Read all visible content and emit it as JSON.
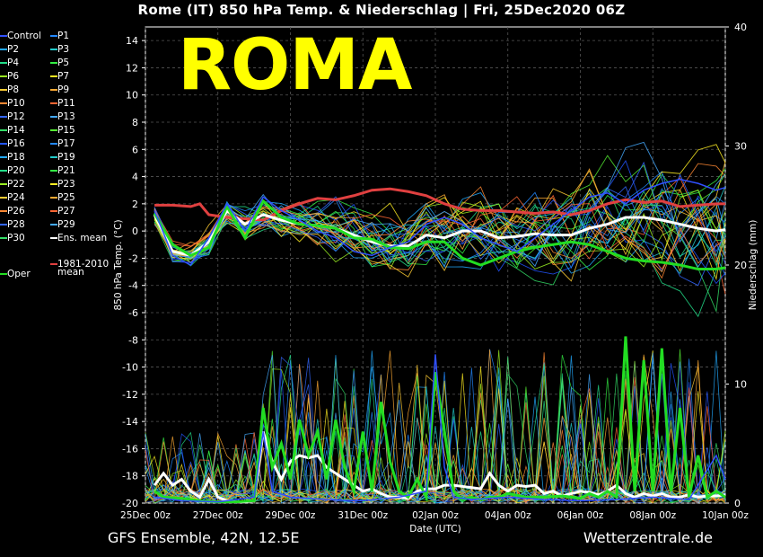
{
  "title": "Rome  (IT)  850 hPa Temp. & Niederschlag | Fri, 25Dec2020 06Z",
  "watermark": "ROMA",
  "footer": {
    "left": "GFS Ensemble, 42N, 12.5E",
    "right": "Wetterzentrale.de"
  },
  "legend": {
    "col1": [
      "Control",
      "P2",
      "P4",
      "P6",
      "P8",
      "P10",
      "P12",
      "P14",
      "P16",
      "P18",
      "P20",
      "P22",
      "P24",
      "P26",
      "P28",
      "P30"
    ],
    "col2": [
      "P1",
      "P3",
      "P5",
      "P7",
      "P9",
      "P11",
      "P13",
      "P15",
      "P17",
      "P19",
      "P21",
      "P23",
      "P25",
      "P27",
      "P29",
      "Ens. mean"
    ],
    "clim_label_1": "1981-2010",
    "clim_label_2": "mean",
    "oper_label": "Oper"
  },
  "colors": {
    "background": "#000000",
    "control": "#3050ff",
    "ens_mean": "#ffffff",
    "clim_mean": "#e04040",
    "oper": "#22dd22",
    "watermark": "#ffff00",
    "member_palette": [
      "#2255ff",
      "#2288ff",
      "#22aaff",
      "#22cccc",
      "#22dd88",
      "#33ee44",
      "#99ee22",
      "#ffee22",
      "#ffcc33",
      "#ffaa33",
      "#ff8833",
      "#ff6633",
      "#3366ff",
      "#44aaff",
      "#33dd66",
      "#55ee33"
    ]
  },
  "chart_data": {
    "type": "line",
    "xlabel": "Date (UTC)",
    "ylabel_left": "850 hPa Temp. (°C)",
    "ylabel_right": "Niederschlag (mm)",
    "x_ticks": [
      "25Dec 00z",
      "27Dec 00z",
      "29Dec 00z",
      "31Dec 00z",
      "02Jan 00z",
      "04Jan 00z",
      "06Jan 00z",
      "08Jan 00z",
      "10Jan 00z"
    ],
    "x_range_days": [
      0,
      16
    ],
    "y_left_range": [
      -20,
      15
    ],
    "y_left_ticks": [
      14,
      12,
      10,
      8,
      6,
      4,
      2,
      0,
      -2,
      -4,
      -6,
      -8,
      -10,
      -12,
      -14,
      -16,
      -18,
      -20
    ],
    "y_right_range": [
      0,
      40
    ],
    "y_right_ticks": [
      0,
      10,
      20,
      30,
      40
    ],
    "grid": true,
    "series": [
      {
        "name": "1981-2010 mean",
        "axis": "temp",
        "points": [
          [
            0.25,
            1.9
          ],
          [
            0.75,
            1.9
          ],
          [
            1.25,
            1.8
          ],
          [
            1.5,
            2.0
          ],
          [
            1.75,
            1.2
          ],
          [
            2.25,
            1.0
          ],
          [
            2.75,
            0.9
          ],
          [
            3.25,
            0.8
          ],
          [
            3.75,
            1.5
          ],
          [
            4.25,
            2.0
          ],
          [
            4.75,
            2.4
          ],
          [
            5.25,
            2.3
          ],
          [
            5.75,
            2.6
          ],
          [
            6.25,
            3.0
          ],
          [
            6.75,
            3.1
          ],
          [
            7.25,
            2.9
          ],
          [
            7.75,
            2.6
          ],
          [
            8.25,
            2.0
          ],
          [
            8.75,
            1.6
          ],
          [
            9.25,
            1.5
          ],
          [
            9.75,
            1.5
          ],
          [
            10.25,
            1.4
          ],
          [
            10.75,
            1.3
          ],
          [
            11.25,
            1.4
          ],
          [
            11.75,
            1.2
          ],
          [
            12.25,
            1.5
          ],
          [
            12.75,
            2.0
          ],
          [
            13.25,
            2.3
          ],
          [
            13.75,
            2.1
          ],
          [
            14.25,
            2.2
          ],
          [
            14.75,
            1.8
          ],
          [
            15.25,
            1.9
          ],
          [
            15.75,
            2.0
          ],
          [
            16.0,
            2.0
          ]
        ]
      },
      {
        "name": "Ens. mean",
        "axis": "temp",
        "points": [
          [
            0.25,
            1.2
          ],
          [
            0.75,
            -1.5
          ],
          [
            1.25,
            -1.8
          ],
          [
            1.75,
            -0.8
          ],
          [
            2.25,
            1.5
          ],
          [
            2.75,
            0.5
          ],
          [
            3.25,
            1.2
          ],
          [
            3.75,
            0.8
          ],
          [
            4.25,
            0.5
          ],
          [
            4.75,
            0.4
          ],
          [
            5.25,
            0.2
          ],
          [
            5.75,
            -0.3
          ],
          [
            6.25,
            -0.8
          ],
          [
            6.75,
            -1.1
          ],
          [
            7.25,
            -1.1
          ],
          [
            7.75,
            -0.3
          ],
          [
            8.25,
            -0.5
          ],
          [
            8.75,
            0.0
          ],
          [
            9.25,
            0.0
          ],
          [
            9.75,
            -0.5
          ],
          [
            10.25,
            -0.4
          ],
          [
            10.75,
            -0.2
          ],
          [
            11.25,
            -0.3
          ],
          [
            11.75,
            -0.3
          ],
          [
            12.25,
            0.2
          ],
          [
            12.75,
            0.5
          ],
          [
            13.25,
            1.0
          ],
          [
            13.75,
            1.0
          ],
          [
            14.25,
            0.8
          ],
          [
            14.75,
            0.5
          ],
          [
            15.25,
            0.2
          ],
          [
            15.75,
            0.0
          ],
          [
            16.0,
            0.1
          ]
        ]
      },
      {
        "name": "Oper",
        "axis": "temp",
        "points": [
          [
            0.25,
            1.3
          ],
          [
            0.75,
            -1.0
          ],
          [
            1.25,
            -1.8
          ],
          [
            1.75,
            -1.2
          ],
          [
            2.25,
            1.8
          ],
          [
            2.75,
            -0.5
          ],
          [
            3.25,
            2.2
          ],
          [
            3.75,
            1.0
          ],
          [
            4.25,
            0.5
          ],
          [
            4.75,
            0.4
          ],
          [
            5.25,
            0.2
          ],
          [
            5.75,
            -0.5
          ],
          [
            6.25,
            -0.6
          ],
          [
            6.75,
            -1.2
          ],
          [
            7.25,
            -1.3
          ],
          [
            7.75,
            -0.8
          ],
          [
            8.25,
            -0.8
          ],
          [
            8.75,
            -2.0
          ],
          [
            9.25,
            -2.5
          ],
          [
            9.75,
            -2.0
          ],
          [
            10.25,
            -1.5
          ],
          [
            10.75,
            -1.2
          ],
          [
            11.25,
            -1.0
          ],
          [
            11.75,
            -0.8
          ],
          [
            12.25,
            -1.0
          ],
          [
            12.75,
            -1.5
          ],
          [
            13.25,
            -2.0
          ],
          [
            13.75,
            -2.2
          ],
          [
            14.25,
            -2.3
          ],
          [
            14.75,
            -2.5
          ],
          [
            15.25,
            -2.8
          ],
          [
            15.75,
            -2.8
          ],
          [
            16.0,
            -2.7
          ]
        ]
      },
      {
        "name": "Control",
        "axis": "temp",
        "points": [
          [
            0.25,
            1.5
          ],
          [
            0.75,
            -1.8
          ],
          [
            1.25,
            -2.5
          ],
          [
            1.75,
            -0.5
          ],
          [
            2.25,
            2.0
          ],
          [
            2.75,
            0.0
          ],
          [
            3.25,
            2.5
          ],
          [
            3.75,
            1.5
          ],
          [
            4.25,
            0.8
          ],
          [
            4.75,
            0.0
          ],
          [
            5.25,
            -0.5
          ],
          [
            5.75,
            -1.5
          ],
          [
            6.25,
            -1.8
          ],
          [
            6.75,
            -1.2
          ],
          [
            7.25,
            -0.8
          ],
          [
            7.75,
            0.5
          ],
          [
            8.25,
            1.0
          ],
          [
            8.75,
            0.5
          ],
          [
            9.25,
            -0.5
          ],
          [
            9.75,
            -1.0
          ],
          [
            10.25,
            -1.5
          ],
          [
            10.75,
            -0.5
          ],
          [
            11.25,
            0.5
          ],
          [
            11.75,
            1.5
          ],
          [
            12.25,
            2.5
          ],
          [
            12.75,
            2.8
          ],
          [
            13.25,
            2.0
          ],
          [
            13.75,
            3.0
          ],
          [
            14.25,
            3.5
          ],
          [
            14.75,
            3.8
          ],
          [
            15.25,
            3.5
          ],
          [
            15.75,
            3.0
          ],
          [
            16.0,
            3.2
          ]
        ]
      },
      {
        "name": "Ens. mean precip",
        "axis": "precip",
        "points": [
          [
            0.25,
            1.5
          ],
          [
            0.5,
            2.5
          ],
          [
            0.75,
            1.5
          ],
          [
            1.0,
            2.0
          ],
          [
            1.25,
            1.0
          ],
          [
            1.5,
            0.5
          ],
          [
            1.75,
            2.0
          ],
          [
            2.0,
            0.5
          ],
          [
            2.25,
            0.2
          ],
          [
            2.5,
            0.1
          ],
          [
            2.75,
            0.1
          ],
          [
            3.0,
            0.2
          ],
          [
            3.25,
            6.0
          ],
          [
            3.5,
            3.5
          ],
          [
            3.75,
            2.0
          ],
          [
            4.0,
            3.5
          ],
          [
            4.25,
            4.0
          ],
          [
            4.5,
            3.8
          ],
          [
            4.75,
            4.0
          ],
          [
            5.0,
            3.0
          ],
          [
            5.25,
            2.5
          ],
          [
            5.5,
            2.0
          ],
          [
            5.75,
            1.5
          ],
          [
            6.0,
            1.0
          ],
          [
            6.25,
            1.2
          ],
          [
            6.5,
            0.8
          ],
          [
            6.75,
            0.5
          ],
          [
            7.0,
            0.5
          ],
          [
            7.25,
            0.4
          ],
          [
            7.5,
            1.0
          ],
          [
            7.75,
            1.2
          ],
          [
            8.0,
            1.2
          ],
          [
            8.25,
            1.5
          ],
          [
            8.5,
            1.5
          ],
          [
            8.75,
            1.4
          ],
          [
            9.0,
            1.3
          ],
          [
            9.25,
            1.2
          ],
          [
            9.5,
            2.5
          ],
          [
            9.75,
            1.5
          ],
          [
            10.0,
            1.0
          ],
          [
            10.25,
            1.5
          ],
          [
            10.5,
            1.4
          ],
          [
            10.75,
            1.5
          ],
          [
            11.0,
            0.8
          ],
          [
            11.25,
            1.0
          ],
          [
            11.5,
            0.6
          ],
          [
            11.75,
            0.8
          ],
          [
            12.0,
            1.0
          ],
          [
            12.25,
            0.9
          ],
          [
            12.5,
            0.7
          ],
          [
            12.75,
            1.0
          ],
          [
            13.0,
            1.5
          ],
          [
            13.25,
            0.8
          ],
          [
            13.5,
            0.5
          ],
          [
            13.75,
            0.8
          ],
          [
            14.0,
            0.6
          ],
          [
            14.25,
            0.8
          ],
          [
            14.5,
            0.5
          ],
          [
            14.75,
            0.5
          ],
          [
            15.0,
            0.7
          ],
          [
            15.25,
            0.5
          ],
          [
            15.5,
            0.6
          ],
          [
            15.75,
            0.6
          ],
          [
            16.0,
            0.7
          ]
        ]
      },
      {
        "name": "Oper precip",
        "axis": "precip",
        "points": [
          [
            0.25,
            1.0
          ],
          [
            0.5,
            0.5
          ],
          [
            1.0,
            0.4
          ],
          [
            1.5,
            0.2
          ],
          [
            2.0,
            0.1
          ],
          [
            2.5,
            0.1
          ],
          [
            3.0,
            0.2
          ],
          [
            3.25,
            8.0
          ],
          [
            3.5,
            3.0
          ],
          [
            3.75,
            5.0
          ],
          [
            4.0,
            2.0
          ],
          [
            4.25,
            7.0
          ],
          [
            4.5,
            4.0
          ],
          [
            4.75,
            6.0
          ],
          [
            5.0,
            2.0
          ],
          [
            5.25,
            7.0
          ],
          [
            5.5,
            3.0
          ],
          [
            5.75,
            1.0
          ],
          [
            6.0,
            6.0
          ],
          [
            6.25,
            1.0
          ],
          [
            6.5,
            8.5
          ],
          [
            6.75,
            3.5
          ],
          [
            7.0,
            1.0
          ],
          [
            7.25,
            0.5
          ],
          [
            7.5,
            2.0
          ],
          [
            7.75,
            0.5
          ],
          [
            8.0,
            11.0
          ],
          [
            8.25,
            6.0
          ],
          [
            8.5,
            1.0
          ],
          [
            8.75,
            0.3
          ],
          [
            9.0,
            0.5
          ],
          [
            9.25,
            0.3
          ],
          [
            9.5,
            0.5
          ],
          [
            9.75,
            0.5
          ],
          [
            10.0,
            0.8
          ],
          [
            10.5,
            0.5
          ],
          [
            11.0,
            0.5
          ],
          [
            11.5,
            0.6
          ],
          [
            12.0,
            0.4
          ],
          [
            12.25,
            0.8
          ],
          [
            12.5,
            0.5
          ],
          [
            12.75,
            1.0
          ],
          [
            13.0,
            0.5
          ],
          [
            13.25,
            14.0
          ],
          [
            13.5,
            1.0
          ],
          [
            13.75,
            12.0
          ],
          [
            14.0,
            1.0
          ],
          [
            14.25,
            13.0
          ],
          [
            14.5,
            1.0
          ],
          [
            14.75,
            8.0
          ],
          [
            15.0,
            0.5
          ],
          [
            15.25,
            4.0
          ],
          [
            15.5,
            0.5
          ],
          [
            15.75,
            1.0
          ],
          [
            16.0,
            0.5
          ]
        ]
      },
      {
        "name": "Control precip",
        "axis": "precip",
        "points": [
          [
            0.25,
            0.5
          ],
          [
            1.0,
            0.2
          ],
          [
            2.0,
            0.1
          ],
          [
            3.0,
            0.5
          ],
          [
            3.25,
            6.0
          ],
          [
            3.5,
            1.0
          ],
          [
            4.0,
            0.5
          ],
          [
            5.0,
            0.3
          ],
          [
            6.0,
            0.2
          ],
          [
            7.0,
            0.5
          ],
          [
            7.75,
            1.0
          ],
          [
            8.0,
            12.5
          ],
          [
            8.25,
            3.0
          ],
          [
            8.5,
            0.5
          ],
          [
            9.0,
            0.3
          ],
          [
            10.0,
            0.5
          ],
          [
            11.0,
            0.3
          ],
          [
            12.0,
            0.2
          ],
          [
            13.0,
            0.3
          ],
          [
            14.0,
            0.5
          ],
          [
            15.0,
            0.3
          ],
          [
            15.75,
            4.0
          ],
          [
            16.0,
            2.0
          ]
        ]
      }
    ]
  }
}
